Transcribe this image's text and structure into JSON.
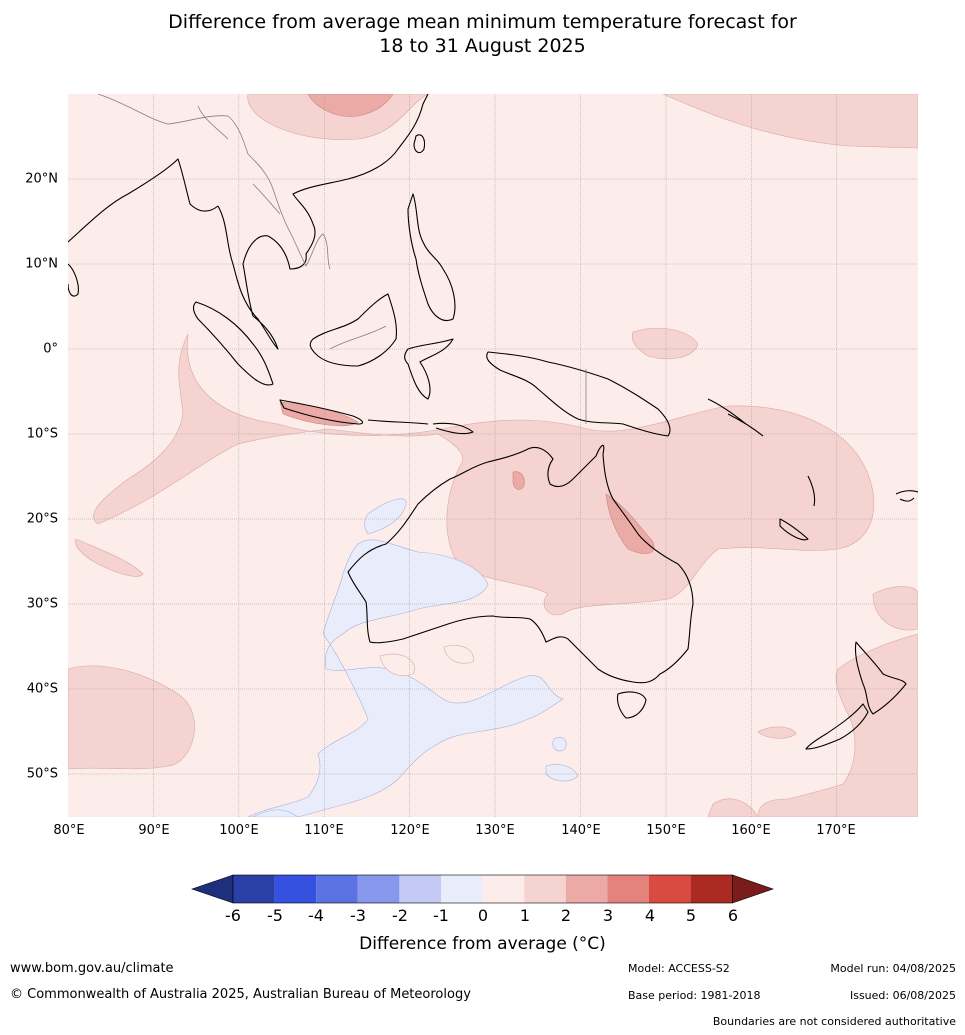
{
  "title": {
    "line1": "Difference from average mean minimum temperature forecast for",
    "line2": "18 to 31 August 2025"
  },
  "map": {
    "latitudes": [
      "20°N",
      "10°N",
      "0°",
      "10°S",
      "20°S",
      "30°S",
      "40°S",
      "50°S"
    ],
    "longitudes": [
      "80°E",
      "90°E",
      "100°E",
      "110°E",
      "120°E",
      "130°E",
      "140°E",
      "150°E",
      "160°E",
      "170°E"
    ],
    "extent": {
      "lon": [
        80,
        179.5
      ],
      "lat": [
        -55,
        30
      ]
    }
  },
  "colorbar": {
    "ticks": [
      "-6",
      "-5",
      "-4",
      "-3",
      "-2",
      "-1",
      "0",
      "1",
      "2",
      "3",
      "4",
      "5",
      "6"
    ],
    "colors": [
      "#1f2f7c",
      "#2b3fa8",
      "#3451e0",
      "#5b72e3",
      "#8797ec",
      "#c3caf3",
      "#e9ecfb",
      "#fcecea",
      "#f4d3d0",
      "#ecaaa6",
      "#e4837c",
      "#d94b40",
      "#ab2b22",
      "#7a1d1a"
    ],
    "label": "Difference from average (°C)"
  },
  "footer": {
    "website": "www.bom.gov.au/climate",
    "copyright": "© Commonwealth of Australia 2025, Australian Bureau of Meteorology",
    "model": "Model: ACCESS-S2",
    "base_period": "Base period: 1981-2018",
    "model_run": "Model run: 04/08/2025",
    "issued": "Issued: 06/08/2025",
    "disclaimer": "Boundaries are not considered authoritative"
  }
}
